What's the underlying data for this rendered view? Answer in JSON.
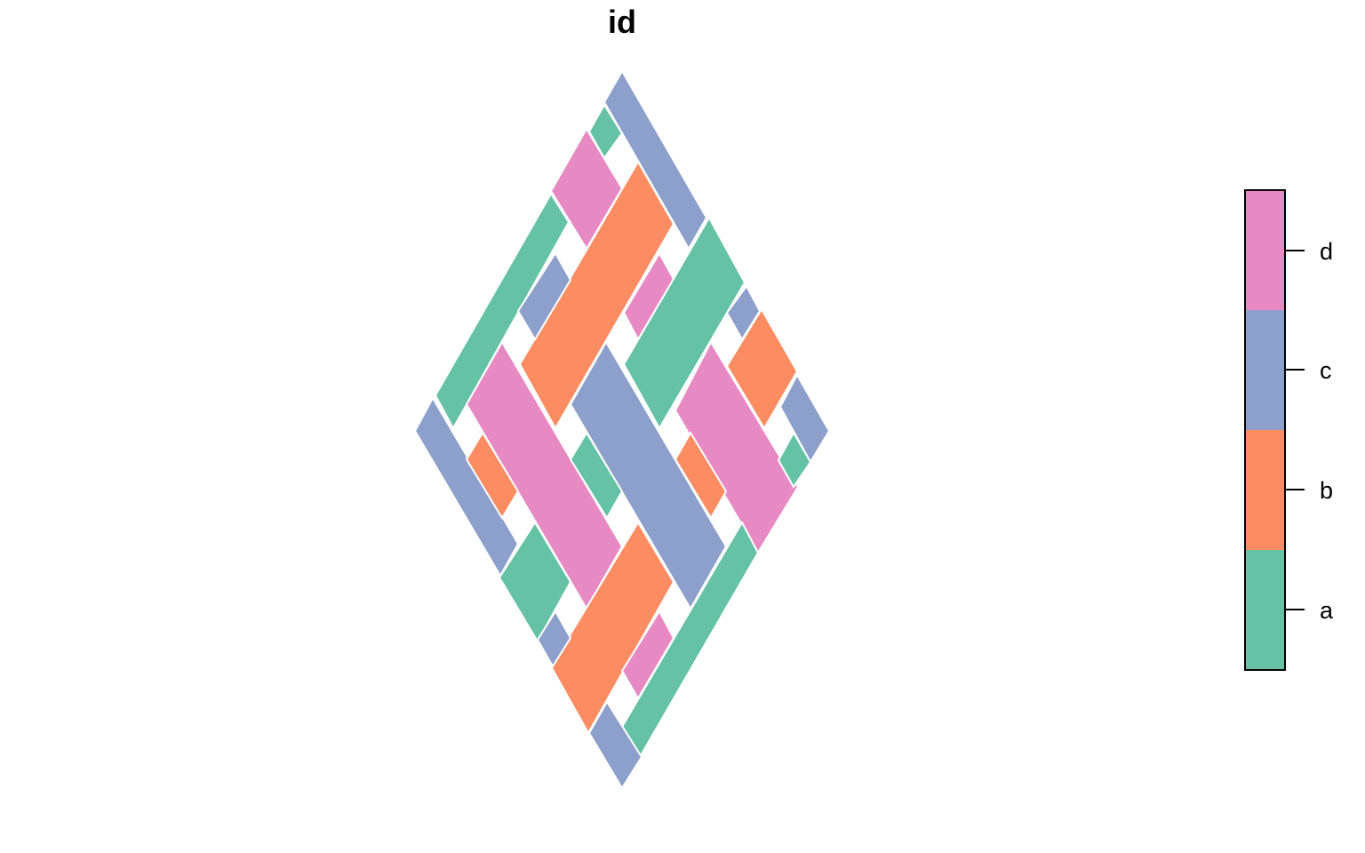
{
  "title": "id",
  "categories": [
    "a",
    "b",
    "c",
    "d"
  ],
  "colors": {
    "a": "#66c2a5",
    "b": "#fc8d62",
    "c": "#8da0cb",
    "d": "#e78ac3"
  },
  "legend": {
    "order_top_to_bottom": [
      "d",
      "c",
      "b",
      "a"
    ]
  }
}
